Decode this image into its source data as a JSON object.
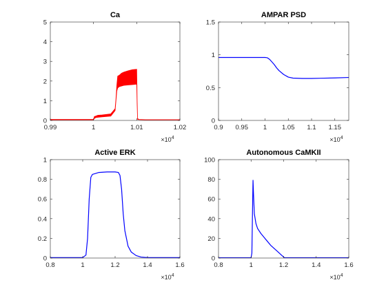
{
  "colors": {
    "red": "#ff0000",
    "blue": "#0000ff",
    "axis": "#262626",
    "background": "#ffffff"
  },
  "chart_data": [
    {
      "id": "ca",
      "type": "line",
      "title": "Ca",
      "xlim": [
        9900,
        10200
      ],
      "ylim": [
        0,
        5
      ],
      "xticks": [
        9900,
        10000,
        10100,
        10200
      ],
      "xtick_labels": [
        "0.99",
        "1",
        "1.01",
        "1.02"
      ],
      "yticks": [
        0,
        1,
        2,
        3,
        4,
        5
      ],
      "ytick_labels": [
        "0",
        "1",
        "2",
        "3",
        "4",
        "5"
      ],
      "x_exponent_base": "×10",
      "x_exponent_power": "4",
      "series": [
        {
          "color": "#ff0000",
          "style": "band",
          "x": [
            9900,
            10000,
            10002,
            10005,
            10010,
            10020,
            10040,
            10050,
            10052,
            10054,
            10056,
            10060,
            10065,
            10070,
            10080,
            10090,
            10100,
            10101,
            10102,
            10105,
            10120,
            10150,
            10200
          ],
          "upper": [
            0.05,
            0.05,
            0.2,
            0.22,
            0.26,
            0.28,
            0.33,
            0.6,
            1.1,
            1.8,
            2.25,
            2.3,
            2.4,
            2.45,
            2.52,
            2.58,
            2.6,
            1.0,
            0.1,
            0.05,
            0.04,
            0.04,
            0.04
          ],
          "lower": [
            0.03,
            0.03,
            0.1,
            0.14,
            0.16,
            0.18,
            0.22,
            0.5,
            1.0,
            1.5,
            1.65,
            1.72,
            1.75,
            1.78,
            1.8,
            1.82,
            1.84,
            0.8,
            0.05,
            0.04,
            0.03,
            0.03,
            0.03
          ]
        }
      ]
    },
    {
      "id": "ampar",
      "type": "line",
      "title": "AMPAR PSD",
      "xlim": [
        9000,
        11800
      ],
      "ylim": [
        0,
        1.5
      ],
      "xticks": [
        9000,
        9500,
        10000,
        10500,
        11000,
        11500
      ],
      "xtick_labels": [
        "0.9",
        "0.95",
        "1",
        "1.05",
        "1.1",
        "1.15"
      ],
      "yticks": [
        0,
        0.5,
        1,
        1.5
      ],
      "ytick_labels": [
        "0",
        "0.5",
        "1",
        "1.5"
      ],
      "x_exponent_base": "×10",
      "x_exponent_power": "4",
      "series": [
        {
          "color": "#0000ff",
          "x": [
            9000,
            9500,
            10000,
            10050,
            10100,
            10150,
            10200,
            10250,
            10300,
            10400,
            10500,
            10600,
            10800,
            11000,
            11200,
            11500,
            11800
          ],
          "y": [
            0.96,
            0.96,
            0.96,
            0.955,
            0.93,
            0.89,
            0.85,
            0.8,
            0.76,
            0.7,
            0.66,
            0.645,
            0.64,
            0.64,
            0.643,
            0.648,
            0.655
          ]
        }
      ]
    },
    {
      "id": "erk",
      "type": "line",
      "title": "Active ERK",
      "xlim": [
        8000,
        16000
      ],
      "ylim": [
        0,
        1
      ],
      "xticks": [
        8000,
        10000,
        12000,
        14000,
        16000
      ],
      "xtick_labels": [
        "0.8",
        "1",
        "1.2",
        "1.4",
        "1.6"
      ],
      "yticks": [
        0,
        0.2,
        0.4,
        0.6,
        0.8,
        1
      ],
      "ytick_labels": [
        "0",
        "0.2",
        "0.4",
        "0.6",
        "0.8",
        "1"
      ],
      "x_exponent_base": "×10",
      "x_exponent_power": "4",
      "series": [
        {
          "color": "#0000ff",
          "x": [
            8000,
            10000,
            10200,
            10300,
            10400,
            10500,
            10600,
            10800,
            11000,
            11500,
            12000,
            12200,
            12300,
            12400,
            12500,
            12600,
            12800,
            13000,
            13300,
            13600,
            14000,
            16000
          ],
          "y": [
            0.005,
            0.005,
            0.03,
            0.2,
            0.6,
            0.82,
            0.85,
            0.86,
            0.87,
            0.875,
            0.875,
            0.87,
            0.84,
            0.7,
            0.45,
            0.28,
            0.12,
            0.06,
            0.025,
            0.01,
            0.005,
            0.005
          ]
        }
      ]
    },
    {
      "id": "camkii",
      "type": "line",
      "title": "Autonomous CaMKII",
      "xlim": [
        8000,
        16000
      ],
      "ylim": [
        0,
        100
      ],
      "xticks": [
        8000,
        10000,
        12000,
        14000,
        16000
      ],
      "xtick_labels": [
        "0.8",
        "1",
        "1.2",
        "1.4",
        "1.6"
      ],
      "yticks": [
        0,
        20,
        40,
        60,
        80,
        100
      ],
      "ytick_labels": [
        "0",
        "20",
        "40",
        "60",
        "80",
        "100"
      ],
      "x_exponent_base": "×10",
      "x_exponent_power": "4",
      "series": [
        {
          "color": "#0000ff",
          "x": [
            8000,
            10000,
            10050,
            10100,
            10120,
            10150,
            10200,
            10300,
            10400,
            10600,
            10800,
            11000,
            11200,
            11400,
            11600,
            11800,
            12000,
            12050,
            16000
          ],
          "y": [
            0.3,
            0.3,
            5,
            60,
            79,
            65,
            45,
            35,
            30,
            25,
            21,
            17,
            13,
            10,
            7,
            4,
            1,
            0.3,
            0.3
          ]
        }
      ]
    }
  ]
}
